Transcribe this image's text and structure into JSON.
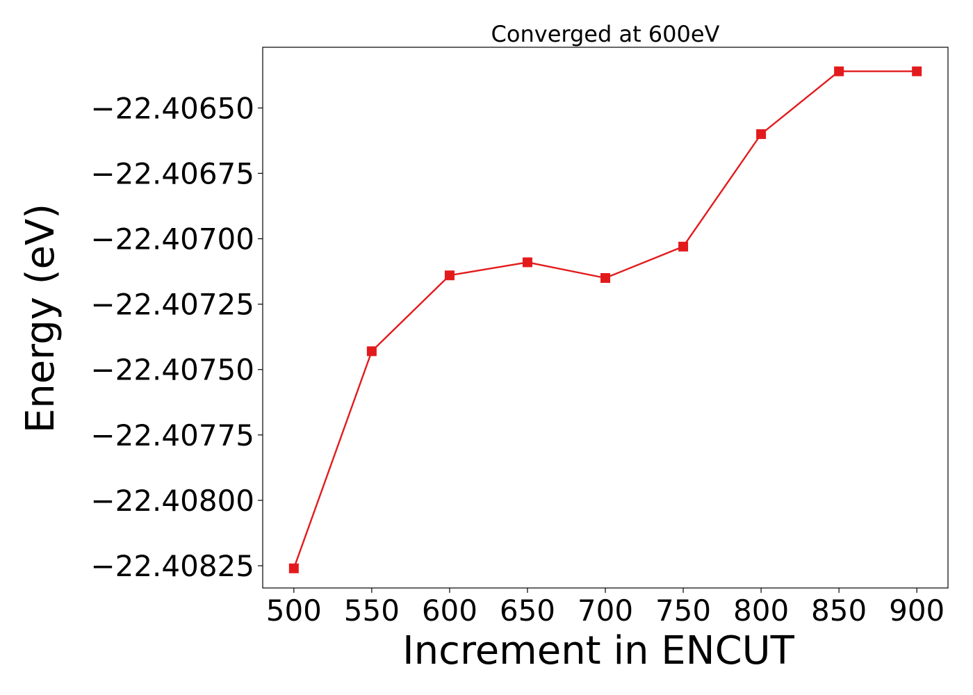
{
  "chart_data": {
    "type": "line",
    "title": "Converged at 600eV",
    "xlabel": "Increment in ENCUT",
    "ylabel": "Energy (eV)",
    "x": [
      500,
      550,
      600,
      650,
      700,
      750,
      800,
      850,
      900
    ],
    "series": [
      {
        "values": [
          -22.40826,
          -22.40743,
          -22.40714,
          -22.40709,
          -22.40715,
          -22.40703,
          -22.4066,
          -22.40636,
          -22.40636
        ],
        "color": "#e31a1c",
        "marker": "square"
      }
    ],
    "xticks": [
      500,
      550,
      600,
      650,
      700,
      750,
      800,
      850,
      900
    ],
    "xtick_labels": [
      "500",
      "550",
      "600",
      "650",
      "700",
      "750",
      "800",
      "850",
      "900"
    ],
    "yticks": [
      -22.40825,
      -22.408,
      -22.40775,
      -22.4075,
      -22.40725,
      -22.407,
      -22.40675,
      -22.4065
    ],
    "ytick_labels": [
      "−22.40825",
      "−22.40800",
      "−22.40775",
      "−22.40750",
      "−22.40725",
      "−22.40700",
      "−22.40675",
      "−22.40650"
    ],
    "xlim": [
      480,
      920
    ],
    "ylim": [
      -22.408335,
      -22.406268
    ],
    "grid": false,
    "legend": false
  }
}
